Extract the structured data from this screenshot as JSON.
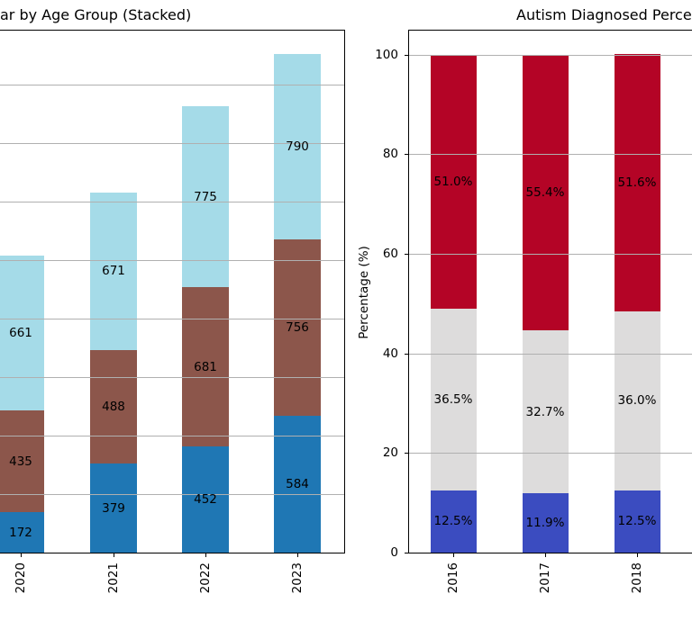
{
  "page": {
    "background": "#ffffff",
    "grid_color": "#b0b0b0",
    "spine_color": "#000000",
    "text_color": "#000000"
  },
  "chart_data": [
    {
      "id": "by-age-group-stacked",
      "type": "bar",
      "stacked": true,
      "title": "ar by Age Group (Stacked)",
      "title_cut_off_left": true,
      "xlabel": "",
      "ylabel": "",
      "categories": [
        "2020",
        "2021",
        "2022",
        "2023"
      ],
      "series": [
        {
          "name": "bottom-segment",
          "color": "#1f77b4",
          "values": [
            172,
            379,
            452,
            584
          ],
          "labels": [
            "172",
            "379",
            "452",
            "584"
          ]
        },
        {
          "name": "middle-segment",
          "color": "#8c564b",
          "values": [
            435,
            488,
            681,
            756
          ],
          "labels": [
            "435",
            "488",
            "681",
            "756"
          ]
        },
        {
          "name": "top-segment",
          "color": "#a5dbe8",
          "values": [
            661,
            671,
            775,
            790
          ],
          "labels": [
            "661",
            "671",
            "775",
            "790"
          ]
        }
      ],
      "totals": [
        1268,
        1538,
        1908,
        2130
      ],
      "ylim": [
        0,
        2236
      ],
      "grid_step": 250,
      "grid": true,
      "grid_above_bars": true,
      "y_axis_labels_visible": false,
      "x_tick_rotation_deg": 90,
      "legend": "none"
    },
    {
      "id": "autism-diagnosed-percentage",
      "type": "bar",
      "stacked": true,
      "title": "Autism Diagnosed Percen",
      "title_cut_off_right": true,
      "xlabel": "",
      "ylabel": "Percentage (%)",
      "categories": [
        "2016",
        "2017",
        "2018"
      ],
      "series": [
        {
          "name": "bottom-segment",
          "color": "#3b4cc0",
          "values": [
            12.5,
            11.9,
            12.5
          ],
          "labels": [
            "12.5%",
            "11.9%",
            "12.5%"
          ]
        },
        {
          "name": "middle-segment",
          "color": "#dddcdc",
          "values": [
            36.5,
            32.7,
            36.0
          ],
          "labels": [
            "36.5%",
            "32.7%",
            "36.0%"
          ]
        },
        {
          "name": "top-segment",
          "color": "#b40426",
          "values": [
            51.0,
            55.4,
            51.6
          ],
          "labels": [
            "51.0%",
            "55.4%",
            "51.6%"
          ]
        }
      ],
      "ylim": [
        0,
        105
      ],
      "yticks": [
        0,
        20,
        40,
        60,
        80,
        100
      ],
      "ytick_labels": [
        "0",
        "20",
        "40",
        "60",
        "80",
        "100"
      ],
      "grid": true,
      "grid_above_bars": true,
      "x_tick_rotation_deg": 90,
      "legend": "none"
    }
  ]
}
